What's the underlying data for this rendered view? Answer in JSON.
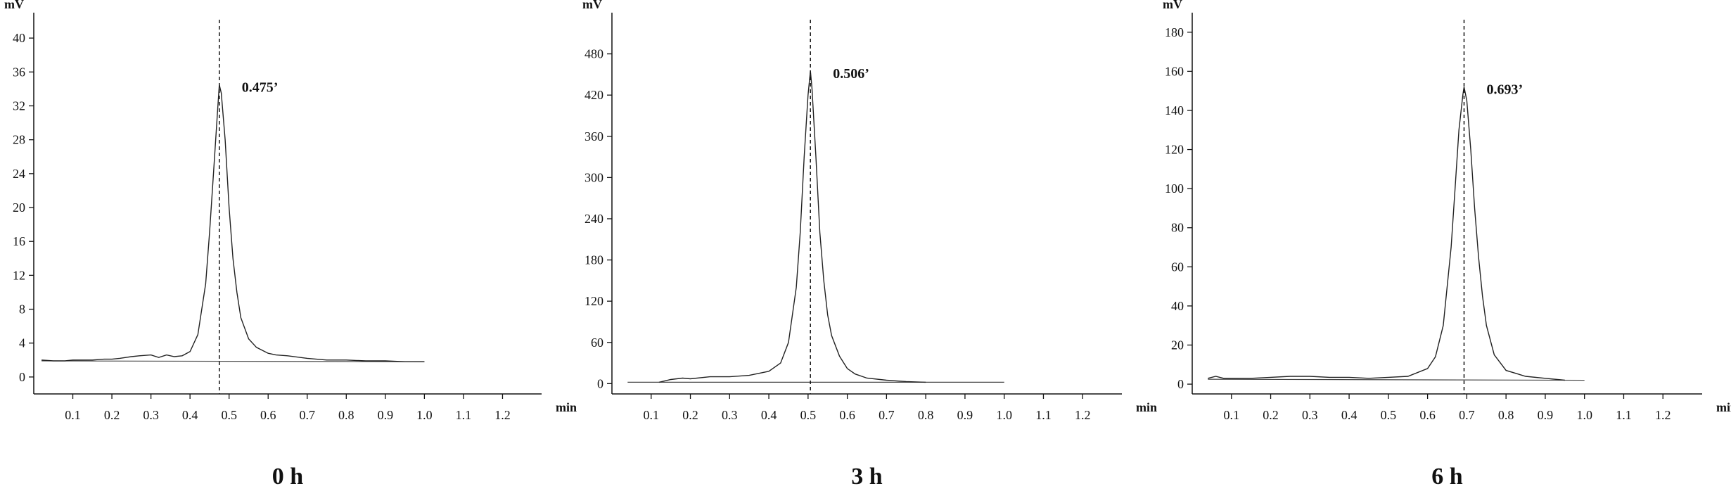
{
  "chart_data": [
    {
      "type": "line",
      "title": "0 h",
      "ylabel": "mV",
      "xlabel": "min",
      "xlim": [
        0,
        1.3
      ],
      "ylim": [
        -2,
        43
      ],
      "xticks": [
        0.1,
        0.2,
        0.3,
        0.4,
        0.5,
        0.6,
        0.7,
        0.8,
        0.9,
        1.0,
        1.1,
        1.2
      ],
      "xtick_labels": [
        "0.1",
        "0.2",
        "0.3",
        "0.4",
        "0.5",
        "0.6",
        "0.7",
        "0.8",
        "0.9",
        "1.0",
        "1.1",
        "1.2"
      ],
      "yticks": [
        0,
        4,
        8,
        12,
        16,
        20,
        24,
        28,
        32,
        36,
        40
      ],
      "ytick_labels": [
        "0",
        "4",
        "8",
        "12",
        "16",
        "20",
        "24",
        "28",
        "32",
        "36",
        "40"
      ],
      "peak": {
        "x": 0.475,
        "y": 34.5,
        "label": "0.475’"
      },
      "baseline": {
        "x": [
          0.02,
          1.0
        ],
        "y": [
          1.9,
          1.8
        ]
      },
      "series": [
        {
          "x": [
            0.02,
            0.05,
            0.08,
            0.1,
            0.12,
            0.15,
            0.18,
            0.2,
            0.22,
            0.25,
            0.27,
            0.3,
            0.32,
            0.34,
            0.36,
            0.38,
            0.4,
            0.42,
            0.44,
            0.45,
            0.46,
            0.47,
            0.475,
            0.48,
            0.49,
            0.5,
            0.51,
            0.52,
            0.53,
            0.55,
            0.57,
            0.6,
            0.62,
            0.65,
            0.7,
            0.75,
            0.8,
            0.85,
            0.9,
            0.95,
            1.0
          ],
          "y": [
            2.0,
            1.9,
            1.9,
            2.0,
            2.0,
            2.0,
            2.1,
            2.1,
            2.2,
            2.4,
            2.5,
            2.6,
            2.3,
            2.6,
            2.4,
            2.5,
            3.0,
            5.0,
            11.0,
            17.0,
            24.0,
            31.0,
            34.5,
            33.5,
            28.0,
            20.0,
            14.0,
            10.0,
            7.0,
            4.5,
            3.5,
            2.8,
            2.6,
            2.5,
            2.2,
            2.0,
            2.0,
            1.9,
            1.9,
            1.8,
            1.8
          ]
        }
      ]
    },
    {
      "type": "line",
      "title": "3 h",
      "ylabel": "mV",
      "xlabel": "min",
      "xlim": [
        0,
        1.3
      ],
      "ylim": [
        -15,
        540
      ],
      "xticks": [
        0.1,
        0.2,
        0.3,
        0.4,
        0.5,
        0.6,
        0.7,
        0.8,
        0.9,
        1.0,
        1.1,
        1.2
      ],
      "xtick_labels": [
        "0.1",
        "0.2",
        "0.3",
        "0.4",
        "0.5",
        "0.6",
        "0.7",
        "0.8",
        "0.9",
        "1.0",
        "1.1",
        "1.2"
      ],
      "yticks": [
        0,
        60,
        120,
        180,
        240,
        300,
        360,
        420,
        480
      ],
      "ytick_labels": [
        "0",
        "60",
        "120",
        "180",
        "240",
        "300",
        "360",
        "420",
        "480"
      ],
      "peak": {
        "x": 0.506,
        "y": 455,
        "label": "0.506’"
      },
      "baseline": {
        "x": [
          0.04,
          1.0
        ],
        "y": [
          2,
          2
        ]
      },
      "series": [
        {
          "x": [
            0.12,
            0.15,
            0.18,
            0.2,
            0.25,
            0.3,
            0.35,
            0.4,
            0.43,
            0.45,
            0.47,
            0.48,
            0.49,
            0.5,
            0.506,
            0.51,
            0.52,
            0.53,
            0.54,
            0.55,
            0.56,
            0.58,
            0.6,
            0.62,
            0.65,
            0.7,
            0.75,
            0.8
          ],
          "y": [
            2,
            6,
            8,
            7,
            10,
            10,
            12,
            18,
            30,
            60,
            140,
            220,
            330,
            420,
            455,
            430,
            330,
            220,
            150,
            100,
            70,
            40,
            22,
            14,
            8,
            5,
            3,
            2
          ]
        }
      ]
    },
    {
      "type": "line",
      "title": "6 h",
      "ylabel": "mV",
      "xlabel": "min",
      "xlim": [
        0,
        1.3
      ],
      "ylim": [
        -5,
        190
      ],
      "xticks": [
        0.1,
        0.2,
        0.3,
        0.4,
        0.5,
        0.6,
        0.7,
        0.8,
        0.9,
        1.0,
        1.1,
        1.2
      ],
      "xtick_labels": [
        "0.1",
        "0.2",
        "0.3",
        "0.4",
        "0.5",
        "0.6",
        "0.7",
        "0.8",
        "0.9",
        "1.0",
        "1.1",
        "1.2"
      ],
      "yticks": [
        0,
        20,
        40,
        60,
        80,
        100,
        120,
        140,
        160,
        180
      ],
      "ytick_labels": [
        "0",
        "20",
        "40",
        "60",
        "80",
        "100",
        "120",
        "140",
        "160",
        "180"
      ],
      "peak": {
        "x": 0.693,
        "y": 152,
        "label": "0.693’"
      },
      "baseline": {
        "x": [
          0.04,
          1.0
        ],
        "y": [
          2.5,
          2.0
        ]
      },
      "series": [
        {
          "x": [
            0.04,
            0.06,
            0.08,
            0.1,
            0.15,
            0.2,
            0.25,
            0.3,
            0.35,
            0.4,
            0.45,
            0.5,
            0.55,
            0.6,
            0.62,
            0.64,
            0.66,
            0.67,
            0.68,
            0.69,
            0.693,
            0.7,
            0.71,
            0.72,
            0.73,
            0.74,
            0.75,
            0.77,
            0.8,
            0.85,
            0.9,
            0.95
          ],
          "y": [
            3,
            4,
            3,
            3,
            3,
            3.5,
            4,
            4,
            3.5,
            3.5,
            3,
            3.5,
            4,
            8,
            14,
            30,
            70,
            100,
            130,
            148,
            152,
            145,
            120,
            90,
            65,
            45,
            30,
            15,
            7,
            4,
            3,
            2
          ]
        }
      ]
    }
  ]
}
